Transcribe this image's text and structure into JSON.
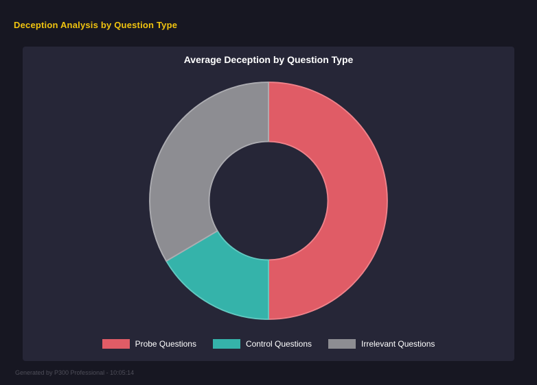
{
  "header": {
    "title": "Deception Analysis by Question Type",
    "color": "#f1c40f"
  },
  "footer": {
    "text": "Generated by P300 Professional - 10:05:14"
  },
  "panel": {
    "background": "#262637"
  },
  "chart_data": {
    "type": "pie",
    "variant": "donut",
    "title": "Average Deception by Question Type",
    "categories": [
      "Probe Questions",
      "Control Questions",
      "Irrelevant Questions"
    ],
    "values": [
      50,
      16.5,
      33.5
    ],
    "unit": "percent-of-circle (estimated from arc angles, no data labels shown)",
    "colors": [
      "#e05c66",
      "#35b3aa",
      "#8d8d92"
    ],
    "border_colors": [
      "#ef838b",
      "#63c9c1",
      "#adadb2"
    ],
    "legend_position": "bottom",
    "start_angle_deg": 0,
    "direction": "clockwise",
    "cutout_ratio": 0.5
  }
}
